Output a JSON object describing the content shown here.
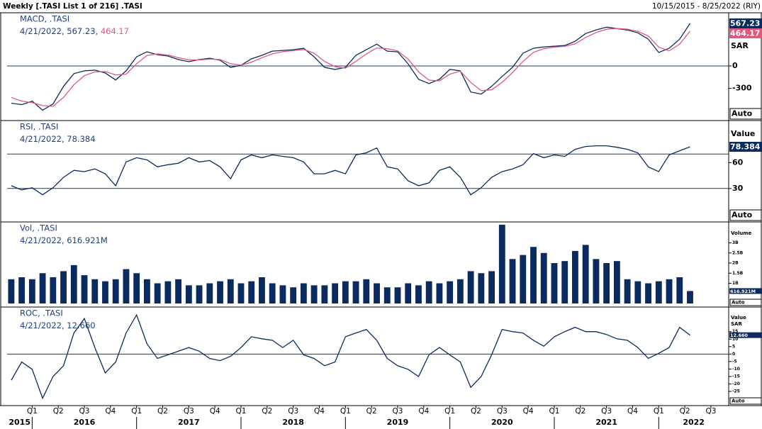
{
  "header": {
    "title": "Weekly [.TASI List 1 of 216] .TASI",
    "range": "10/15/2015 - 8/25/2022 (RIY)"
  },
  "chart_data": {
    "type": "panels",
    "auto": "Auto",
    "xlim": [
      2015.76,
      2022.67
    ],
    "x": [
      2015.8,
      2015.9,
      2016.0,
      2016.1,
      2016.2,
      2016.3,
      2016.4,
      2016.5,
      2016.6,
      2016.7,
      2016.8,
      2016.9,
      2017.0,
      2017.1,
      2017.2,
      2017.3,
      2017.4,
      2017.5,
      2017.6,
      2017.7,
      2017.8,
      2017.9,
      2018.0,
      2018.1,
      2018.2,
      2018.3,
      2018.4,
      2018.5,
      2018.6,
      2018.7,
      2018.8,
      2018.9,
      2019.0,
      2019.1,
      2019.2,
      2019.3,
      2019.4,
      2019.5,
      2019.6,
      2019.7,
      2019.8,
      2019.9,
      2020.0,
      2020.1,
      2020.2,
      2020.3,
      2020.4,
      2020.5,
      2020.6,
      2020.7,
      2020.8,
      2020.9,
      2021.0,
      2021.1,
      2021.2,
      2021.3,
      2021.4,
      2021.5,
      2021.6,
      2021.7,
      2021.8,
      2021.9,
      2022.0,
      2022.1,
      2022.2,
      2022.3
    ],
    "xticks": [
      {
        "value": 2016,
        "label": "Q1"
      },
      {
        "value": 2016.25,
        "label": "Q2"
      },
      {
        "value": 2016.5,
        "label": "Q3"
      },
      {
        "value": 2016.75,
        "label": "Q4"
      },
      {
        "value": 2017,
        "label": "Q1"
      },
      {
        "value": 2017.25,
        "label": "Q2"
      },
      {
        "value": 2017.5,
        "label": "Q3"
      },
      {
        "value": 2017.75,
        "label": "Q4"
      },
      {
        "value": 2018,
        "label": "Q1"
      },
      {
        "value": 2018.25,
        "label": "Q2"
      },
      {
        "value": 2018.5,
        "label": "Q3"
      },
      {
        "value": 2018.75,
        "label": "Q4"
      },
      {
        "value": 2019,
        "label": "Q1"
      },
      {
        "value": 2019.25,
        "label": "Q2"
      },
      {
        "value": 2019.5,
        "label": "Q3"
      },
      {
        "value": 2019.75,
        "label": "Q4"
      },
      {
        "value": 2020,
        "label": "Q1"
      },
      {
        "value": 2020.25,
        "label": "Q2"
      },
      {
        "value": 2020.5,
        "label": "Q3"
      },
      {
        "value": 2020.75,
        "label": "Q4"
      },
      {
        "value": 2021,
        "label": "Q1"
      },
      {
        "value": 2021.25,
        "label": "Q2"
      },
      {
        "value": 2021.5,
        "label": "Q3"
      },
      {
        "value": 2021.75,
        "label": "Q4"
      },
      {
        "value": 2022,
        "label": "Q1"
      },
      {
        "value": 2022.25,
        "label": "Q2"
      },
      {
        "value": 2022.5,
        "label": "Q3"
      }
    ],
    "years": [
      2015,
      2016,
      2017,
      2018,
      2019,
      2020,
      2021,
      2022
    ],
    "panels": [
      {
        "type": "line",
        "title": "MACD, .TASI",
        "readout": [
          "4/21/2022, 567.23, ",
          "464.17"
        ],
        "axis_titles": [
          "SAR"
        ],
        "ylim": [
          -720,
          700
        ],
        "yticks": [
          0,
          -300
        ],
        "hlines": [
          0
        ],
        "series": [
          {
            "color": "#0b2b5e",
            "last_label": "567.23",
            "values": [
              -498,
              -517,
              -470,
              -592,
              -508,
              -273,
              -103,
              -66,
              -56,
              -94,
              -188,
              -66,
              122,
              188,
              150,
              132,
              85,
              56,
              85,
              103,
              75,
              -19,
              9,
              94,
              141,
              197,
              207,
              216,
              235,
              122,
              -19,
              -47,
              -19,
              141,
              216,
              291,
              197,
              188,
              28,
              -179,
              -235,
              -179,
              -47,
              -66,
              -348,
              -376,
              -273,
              -141,
              -19,
              169,
              235,
              254,
              263,
              272,
              329,
              432,
              479,
              517,
              498,
              479,
              442,
              357,
              179,
              235,
              357,
              567.23
            ]
          },
          {
            "color": "#e0587e",
            "last_label": "464.17",
            "values": [
              -420,
              -470,
              -490,
              -530,
              -540,
              -420,
              -250,
              -130,
              -80,
              -75,
              -120,
              -110,
              30,
              140,
              160,
              145,
              110,
              80,
              80,
              90,
              85,
              30,
              10,
              50,
              110,
              160,
              190,
              205,
              220,
              170,
              60,
              -10,
              -30,
              60,
              160,
              240,
              230,
              200,
              90,
              -80,
              -190,
              -200,
              -110,
              -70,
              -220,
              -330,
              -320,
              -220,
              -90,
              60,
              180,
              230,
              250,
              262,
              295,
              380,
              445,
              490,
              500,
              490,
              460,
              400,
              250,
              200,
              290,
              464.17
            ]
          }
        ]
      },
      {
        "type": "line",
        "title": "RSI, .TASI",
        "readout": [
          "4/21/2022, 78.384"
        ],
        "axis_titles": [
          "Value"
        ],
        "ylim": [
          -8,
          108
        ],
        "yticks": [
          60,
          30
        ],
        "hlines": [
          70,
          30
        ],
        "series": [
          {
            "color": "#0b2b5e",
            "last_label": "78.384",
            "values": [
              33.2,
              28.4,
              30.8,
              22.7,
              30.8,
              42.9,
              51.1,
              49.5,
              52.7,
              47.0,
              33.2,
              60.8,
              65.7,
              63.2,
              55.1,
              57.6,
              59.2,
              65.7,
              60.8,
              62.4,
              55.1,
              41.4,
              63.2,
              68.9,
              65.7,
              68.9,
              67.3,
              65.7,
              60.8,
              47.0,
              47.0,
              51.1,
              47.0,
              68.9,
              71.4,
              77.0,
              55.1,
              52.7,
              38.9,
              33.2,
              36.5,
              51.1,
              55.1,
              43.0,
              22.7,
              30.8,
              43.0,
              49.5,
              52.7,
              57.6,
              70.5,
              65.7,
              68.9,
              67.3,
              75.4,
              78.7,
              79.5,
              79.5,
              77.8,
              75.4,
              71.4,
              55.1,
              49.5,
              68.9,
              73.8,
              78.384
            ]
          }
        ]
      },
      {
        "type": "bar",
        "title": "Vol, .TASI",
        "readout": [
          "4/21/2022, 616.921M"
        ],
        "axis_titles": [
          "Volume"
        ],
        "ylim": [
          -0.14,
          4.0
        ],
        "yticks": [
          {
            "value": 3,
            "label": "3B"
          },
          {
            "value": 2.5,
            "label": "2.5B"
          },
          {
            "value": 2,
            "label": "2B"
          },
          {
            "value": 1.5,
            "label": "1.5B"
          },
          {
            "value": 1,
            "label": "1B"
          }
        ],
        "series": [
          {
            "color": "#0b2b5e",
            "last_label": "616.921M",
            "values": [
              1.2,
              1.3,
              1.2,
              1.5,
              1.3,
              1.6,
              1.9,
              1.4,
              1.2,
              1.1,
              1.2,
              1.7,
              1.5,
              1.2,
              1.0,
              1.1,
              1.2,
              0.9,
              0.9,
              1.0,
              1.1,
              1.2,
              1.0,
              1.1,
              1.3,
              1.0,
              0.9,
              0.8,
              1.0,
              0.9,
              0.9,
              1.0,
              1.1,
              1.1,
              1.2,
              1.0,
              0.8,
              0.8,
              1.0,
              0.9,
              1.1,
              1.0,
              1.1,
              1.2,
              1.6,
              1.5,
              1.6,
              3.9,
              2.2,
              2.4,
              2.8,
              2.5,
              2.0,
              2.1,
              2.6,
              2.9,
              2.2,
              2.0,
              2.1,
              1.2,
              1.1,
              1.0,
              1.1,
              1.2,
              1.3,
              0.616921
            ]
          }
        ]
      },
      {
        "type": "line",
        "title": "ROC, .TASI",
        "readout": [
          "4/21/2022, 12.660"
        ],
        "axis_titles": [
          "Value",
          "SAR"
        ],
        "ylim": [
          -34,
          31
        ],
        "yticks": [
          15,
          10,
          5,
          0,
          -5,
          -10,
          -15,
          -20,
          -25
        ],
        "hlines": [
          0
        ],
        "series": [
          {
            "color": "#0b2b5e",
            "last_label": "12.660",
            "values": [
              -17.5,
              -5.3,
              -10.2,
              -29.6,
              -15.0,
              -7.8,
              14.1,
              23.8,
              4.4,
              -12.6,
              -5.3,
              14.1,
              26.2,
              6.8,
              -2.9,
              -0.5,
              1.9,
              4.4,
              1.9,
              -2.9,
              -4.4,
              -1.5,
              4.4,
              11.6,
              10.2,
              9.2,
              4.4,
              9.2,
              -0.5,
              -2.9,
              -7.8,
              -5.3,
              11.6,
              14.1,
              16.5,
              9.2,
              -2.9,
              -7.8,
              -10.2,
              -15.0,
              -0.5,
              4.4,
              -0.5,
              -5.3,
              -22.3,
              -15.0,
              -0.5,
              16.5,
              15.0,
              14.1,
              9.2,
              5.3,
              11.6,
              15.0,
              17.9,
              15.0,
              15.0,
              13.1,
              10.2,
              9.2,
              4.4,
              -2.9,
              0.5,
              4.4,
              17.9,
              12.66
            ]
          }
        ]
      }
    ]
  }
}
